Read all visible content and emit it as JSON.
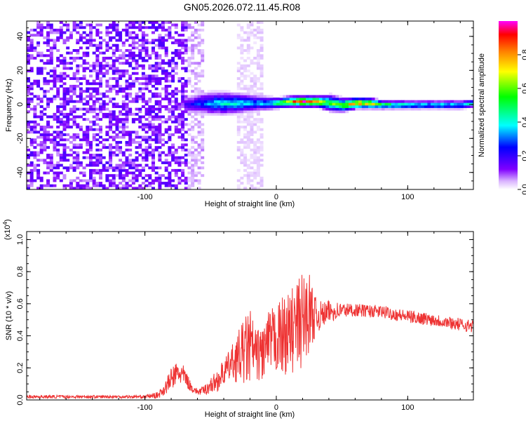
{
  "page_title": "GN05.2026.072.11.45.R08",
  "chart_data": [
    {
      "type": "heatmap",
      "xlabel": "Height of straight line (km)",
      "ylabel": "Frequency (Hz)",
      "xlim": [
        -190,
        150
      ],
      "ylim": [
        -50,
        49
      ],
      "xticks": [
        -100,
        0,
        100
      ],
      "yticks": [
        -40,
        -20,
        0,
        20,
        40
      ],
      "grid": false,
      "colorbar": {
        "label": "Normalized spectral amplitude",
        "range": [
          0,
          1
        ],
        "ticks": [
          0.0,
          0.2,
          0.4,
          0.6,
          0.8
        ],
        "colormap": [
          "#ffffff",
          "#d9b3ff",
          "#8000ff",
          "#0000ff",
          "#00ffff",
          "#00ff00",
          "#ffff00",
          "#ff8000",
          "#ff0000",
          "#ff00ff"
        ]
      },
      "regions": [
        {
          "x": [
            -190,
            -68
          ],
          "y": [
            -50,
            49
          ],
          "amplitude": 0.12
        },
        {
          "x": [
            -68,
            -55
          ],
          "y": [
            -50,
            49
          ],
          "amplitude": 0.05
        },
        {
          "x": [
            -30,
            -12
          ],
          "y": [
            -50,
            49
          ],
          "amplitude": 0.03
        }
      ],
      "band": {
        "x": [
          -70,
          -60,
          -50,
          -40,
          -30,
          -20,
          -10,
          0,
          10,
          20,
          30,
          40,
          50,
          60,
          70,
          80,
          90,
          100,
          110,
          120,
          130,
          140,
          150
        ],
        "center_hz": [
          -1,
          0,
          0,
          0,
          0,
          0,
          0,
          0,
          1,
          1,
          1,
          0,
          -1,
          0,
          0,
          -1,
          -1,
          -1,
          -1,
          -1,
          -1,
          -1,
          0
        ],
        "half_width_hz": [
          6,
          7,
          8,
          8,
          7,
          6,
          5,
          4,
          4,
          4,
          4,
          6,
          5,
          4,
          4,
          3,
          3,
          3,
          3,
          3,
          3,
          3,
          3
        ],
        "peak_amplitude": [
          0.2,
          0.3,
          0.4,
          0.45,
          0.45,
          0.4,
          0.4,
          0.55,
          0.8,
          0.95,
          0.85,
          0.6,
          0.7,
          0.9,
          0.8,
          0.6,
          0.55,
          0.5,
          0.45,
          0.45,
          0.45,
          0.45,
          0.4
        ]
      }
    },
    {
      "type": "line",
      "xlabel": "Height of straight line (km)",
      "ylabel": "SNR (10 * v/v)",
      "y_multiplier_label": "(x10",
      "y_multiplier_exp": "4",
      "y_multiplier_close": ")",
      "xlim": [
        -190,
        150
      ],
      "ylim": [
        0,
        1.05
      ],
      "xticks": [
        -100,
        0,
        100
      ],
      "yticks": [
        0.0,
        0.2,
        0.4,
        0.6,
        0.8,
        1.0
      ],
      "grid": false,
      "series": [
        {
          "color": "#ee3333",
          "envelope": {
            "x": [
              -190,
              -120,
              -100,
              -90,
              -85,
              -80,
              -75,
              -70,
              -65,
              -60,
              -55,
              -50,
              -45,
              -40,
              -35,
              -30,
              -25,
              -20,
              -15,
              -10,
              -5,
              0,
              5,
              10,
              15,
              20,
              25,
              30,
              35,
              40,
              50,
              60,
              80,
              100,
              120,
              140,
              150
            ],
            "center": [
              0.02,
              0.02,
              0.02,
              0.03,
              0.07,
              0.13,
              0.17,
              0.15,
              0.08,
              0.05,
              0.06,
              0.09,
              0.12,
              0.17,
              0.22,
              0.26,
              0.3,
              0.33,
              0.28,
              0.3,
              0.36,
              0.38,
              0.4,
              0.42,
              0.45,
              0.5,
              0.55,
              0.52,
              0.53,
              0.55,
              0.56,
              0.56,
              0.55,
              0.52,
              0.5,
              0.47,
              0.46
            ],
            "noise": [
              0.01,
              0.01,
              0.01,
              0.02,
              0.04,
              0.07,
              0.08,
              0.06,
              0.03,
              0.02,
              0.03,
              0.05,
              0.07,
              0.08,
              0.1,
              0.15,
              0.2,
              0.25,
              0.15,
              0.2,
              0.2,
              0.22,
              0.25,
              0.25,
              0.3,
              0.3,
              0.25,
              0.12,
              0.08,
              0.07,
              0.05,
              0.04,
              0.04,
              0.04,
              0.04,
              0.04,
              0.04
            ]
          }
        }
      ]
    }
  ]
}
